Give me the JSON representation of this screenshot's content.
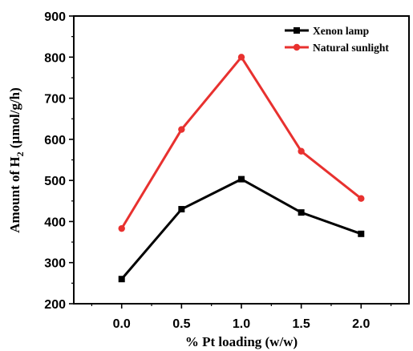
{
  "chart_data": {
    "type": "line",
    "x": [
      0.0,
      0.5,
      1.0,
      1.5,
      2.0
    ],
    "xticks": [
      "0.0",
      "0.5",
      "1.0",
      "1.5",
      "2.0"
    ],
    "xlim": [
      -0.4,
      2.4
    ],
    "yticks": [
      "200",
      "300",
      "400",
      "500",
      "600",
      "700",
      "800",
      "900"
    ],
    "ylim": [
      200,
      900
    ],
    "xlabel": "% Pt loading (w/w)",
    "ylabel": "Amount of H",
    "ylabel_sub": "2",
    "ylabel_unit": " (µmol/g/h)",
    "legend_position": "top-right",
    "grid": false,
    "series": [
      {
        "name": "Xenon lamp",
        "color": "#000000",
        "marker": "square",
        "values": [
          260,
          430,
          503,
          422,
          370
        ]
      },
      {
        "name": "Natural sunlight",
        "color": "#e8312f",
        "marker": "circle",
        "values": [
          383,
          624,
          800,
          571,
          456
        ]
      }
    ]
  }
}
